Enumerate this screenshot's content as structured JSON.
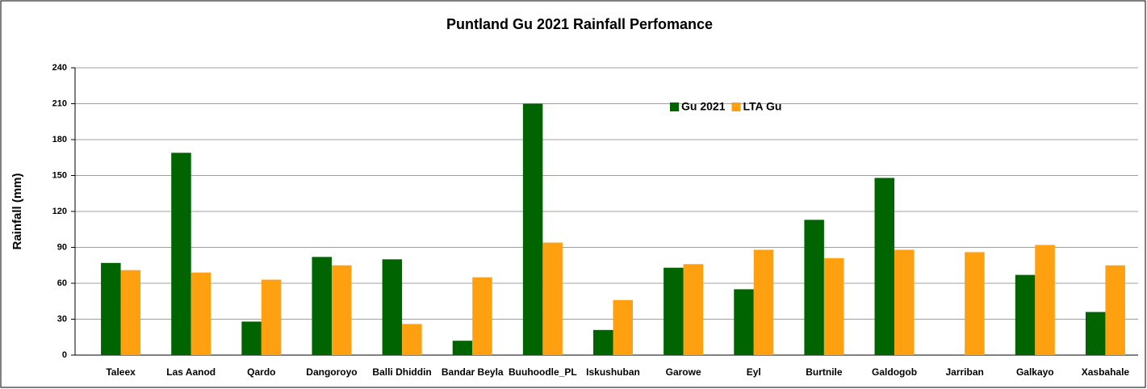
{
  "chart_data": {
    "type": "bar",
    "title": "Puntland Gu 2021  Rainfall Perfomance",
    "y_label": "Rainfall (mm)",
    "categories": [
      "Taleex",
      "Las Aanod",
      "Qardo",
      "Dangoroyo",
      "Balli Dhiddin",
      "Bandar Beyla",
      "Buuhoodle_PL",
      "Iskushuban",
      "Garowe",
      "Eyl",
      "Burtnile",
      "Galdogob",
      "Jarriban",
      "Galkayo",
      "Xasbahale"
    ],
    "series": [
      {
        "name": "Gu 2021",
        "color": "#006400",
        "values": [
          77,
          169,
          28,
          82,
          80,
          12,
          210,
          21,
          73,
          55,
          113,
          148,
          0,
          67,
          36
        ]
      },
      {
        "name": "LTA Gu",
        "color": "#ffa010",
        "values": [
          71,
          69,
          63,
          75,
          26,
          65,
          94,
          46,
          76,
          88,
          81,
          88,
          86,
          92,
          75
        ]
      }
    ],
    "ylim": [
      0,
      240
    ],
    "yticks": [
      0,
      30,
      60,
      90,
      120,
      150,
      180,
      210,
      240
    ],
    "grid": true,
    "legend": "top-center"
  }
}
